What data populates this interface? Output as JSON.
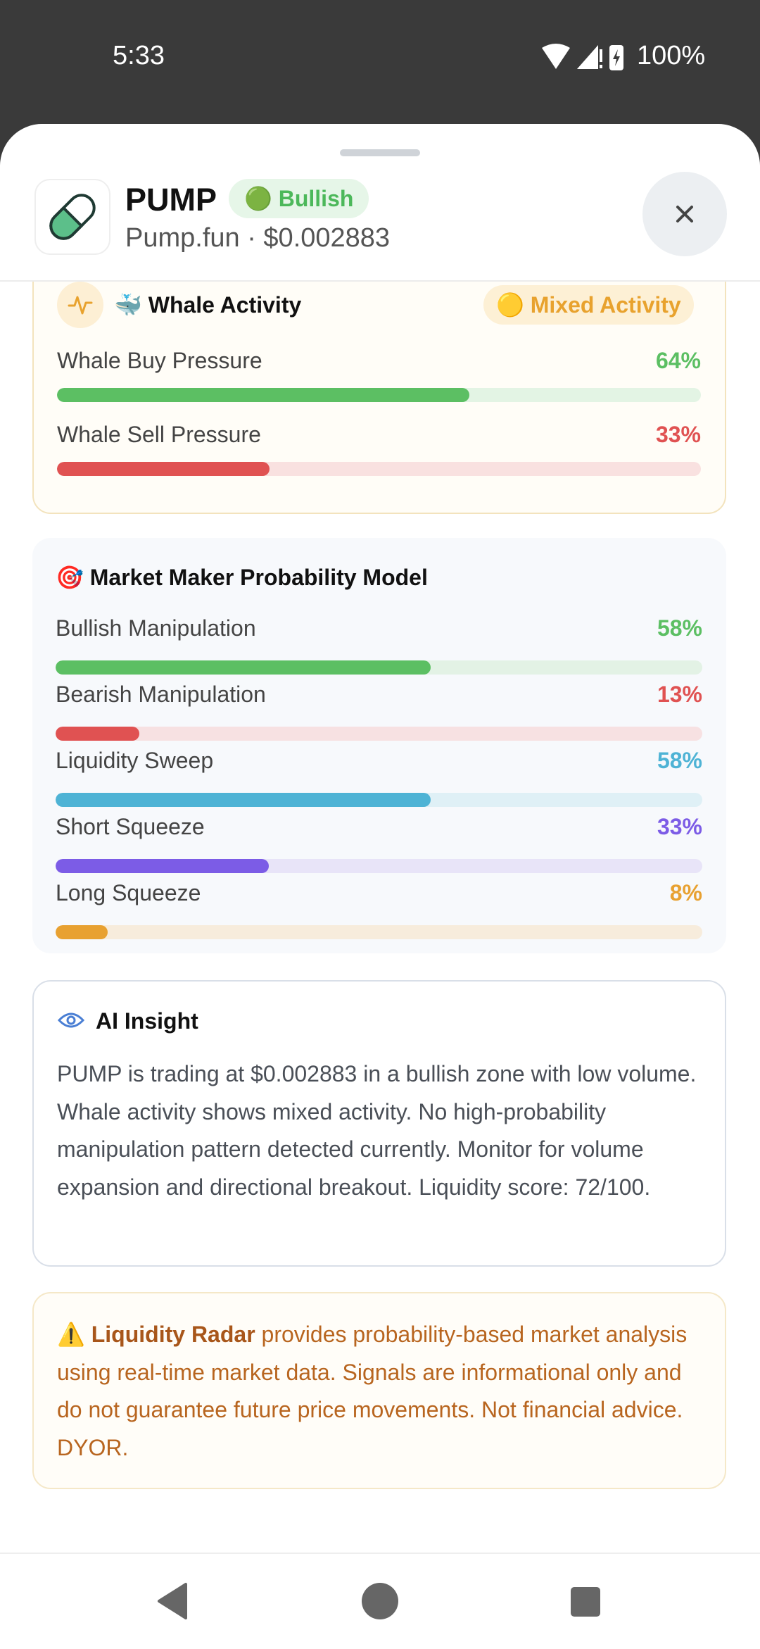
{
  "status_bar": {
    "time": "5:33",
    "battery": "100%"
  },
  "header": {
    "ticker": "PUMP",
    "trend": "🟢 Bullish",
    "subtitle": "Pump.fun · $0.002883"
  },
  "whale_activity": {
    "title": "🐳 Whale Activity",
    "status": "🟡 Mixed Activity",
    "rows": [
      {
        "label": "Whale Buy Pressure",
        "value": 64,
        "value_label": "64%",
        "color": "#5cbf63",
        "track": "#e3f4e4"
      },
      {
        "label": "Whale Sell Pressure",
        "value": 33,
        "value_label": "33%",
        "color": "#e05252",
        "track": "#f9e1e0"
      }
    ]
  },
  "market_maker_model": {
    "title": "🎯 Market Maker Probability Model",
    "rows": [
      {
        "label": "Bullish Manipulation",
        "value": 58,
        "value_label": "58%",
        "color": "#5cbf63",
        "track": "#e3f2e5"
      },
      {
        "label": "Bearish Manipulation",
        "value": 13,
        "value_label": "13%",
        "color": "#e05252",
        "track": "#f7e1e2"
      },
      {
        "label": "Liquidity Sweep",
        "value": 58,
        "value_label": "58%",
        "color": "#4eb3d5",
        "track": "#dff0f6"
      },
      {
        "label": "Short Squeeze",
        "value": 33,
        "value_label": "33%",
        "color": "#7c5ce6",
        "track": "#e8e4f8"
      },
      {
        "label": "Long Squeeze",
        "value": 8,
        "value_label": "8%",
        "color": "#e8a131",
        "track": "#f7ecdc"
      }
    ]
  },
  "ai_insight": {
    "title": "AI Insight",
    "text": "PUMP is trading at $0.002883 in a bullish zone with low volume. Whale activity shows mixed activity. No high-probability manipulation pattern detected currently. Monitor for volume expansion and directional breakout. Liquidity score: 72/100."
  },
  "disclaimer": {
    "lead": "⚠️ Liquidity Radar",
    "text": "provides probability-based market analysis using real-time market data. Signals are informational only and do not guarantee future price movements. Not financial advice. DYOR."
  }
}
